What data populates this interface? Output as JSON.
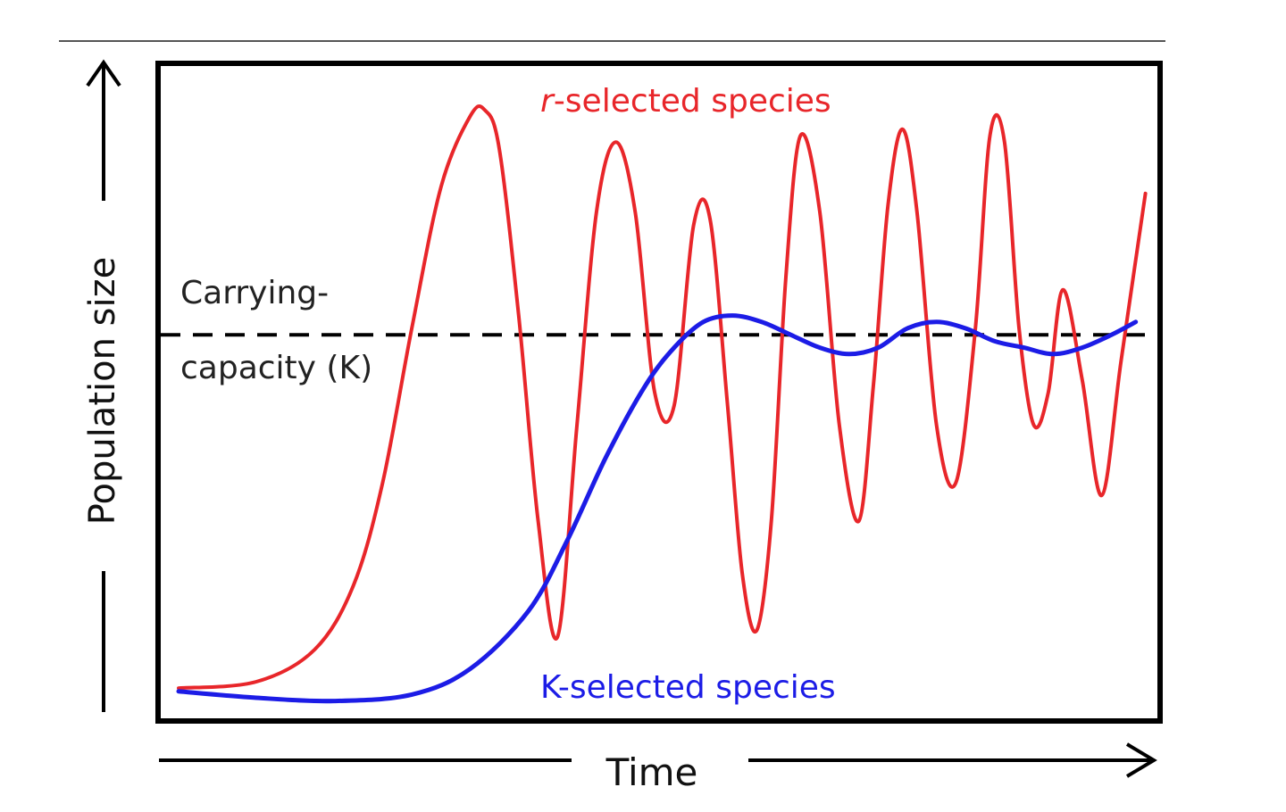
{
  "chart_data": {
    "type": "line",
    "title": "",
    "xlabel": "Time",
    "ylabel": "Population size",
    "xlim": [
      0,
      100
    ],
    "ylim": [
      0,
      100
    ],
    "grid": false,
    "annotations": {
      "carrying_line1": "Carrying-",
      "carrying_line2": "capacity (K)",
      "r_prefix": "r",
      "r_suffix": "-selected species",
      "k_label": "K-selected species"
    },
    "carrying_capacity": 59,
    "series": [
      {
        "name": "r-selected species",
        "color": "#e8262a",
        "x": [
          0,
          8,
          14,
          18,
          21,
          24,
          27,
          30,
          31.5,
          33,
          35,
          37,
          39,
          41,
          43,
          45,
          47,
          49,
          51,
          53,
          54.7,
          56.5,
          58,
          59.5,
          61,
          62.5,
          64,
          66,
          68,
          70,
          71.5,
          73,
          74.5,
          76,
          78,
          80,
          82,
          83.5,
          85,
          86.5,
          88,
          89.5,
          91,
          93,
          95,
          97,
          99.5
        ],
        "y": [
          4,
          5,
          10,
          20,
          36,
          60,
          82,
          93,
          94,
          88,
          62,
          30,
          12,
          45,
          78,
          89,
          78,
          50,
          48,
          76,
          77,
          48,
          22,
          13,
          30,
          68,
          90,
          78,
          45,
          30,
          51,
          79,
          91,
          78,
          45,
          36,
          60,
          90,
          89,
          60,
          45,
          50,
          66,
          52,
          34,
          55,
          81
        ]
      },
      {
        "name": "K-selected species",
        "color": "#1c1ce6",
        "x": [
          0,
          8,
          16,
          24,
          30,
          36,
          40,
          44,
          48,
          51,
          54,
          57,
          60,
          63,
          66,
          69,
          72,
          75,
          78,
          81,
          84,
          87,
          90,
          93,
          96,
          98.5
        ],
        "y": [
          3.5,
          2.5,
          2,
          3,
          7,
          16,
          27,
          40,
          51,
          57,
          61,
          62,
          61,
          59,
          57,
          56,
          57,
          60,
          61,
          60,
          58,
          57,
          56,
          57,
          59,
          61
        ]
      }
    ]
  }
}
